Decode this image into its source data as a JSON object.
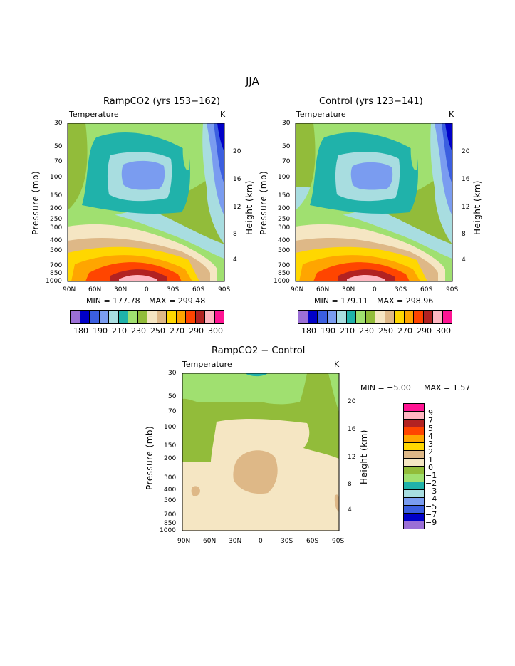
{
  "page_title": "JJA",
  "chart_data": [
    {
      "type": "contour",
      "title": "RampCO2 (yrs 153−162)",
      "subtitle_left": "Temperature",
      "subtitle_right": "K",
      "xlabel": "",
      "ylabel": "Pressure (mb)",
      "ylabel_right": "Height (km)",
      "x_ticks": [
        "90N",
        "60N",
        "30N",
        "0",
        "30S",
        "60S",
        "90S"
      ],
      "y_ticks": [
        "30",
        "50",
        "70",
        "100",
        "150",
        "200",
        "250",
        "300",
        "400",
        "500",
        "700",
        "850",
        "1000"
      ],
      "y_right_ticks": [
        "20",
        "16",
        "12",
        "8",
        "4"
      ],
      "min_label": "MIN = 177.78",
      "max_label": "MAX = 299.48",
      "color_levels": [
        "180",
        "190",
        "210",
        "230",
        "250",
        "270",
        "290",
        "300"
      ]
    },
    {
      "type": "contour",
      "title": "Control (yrs 123−141)",
      "subtitle_left": "Temperature",
      "subtitle_right": "K",
      "xlabel": "",
      "ylabel": "Pressure (mb)",
      "ylabel_right": "Height (km)",
      "x_ticks": [
        "90N",
        "60N",
        "30N",
        "0",
        "30S",
        "60S",
        "90S"
      ],
      "y_ticks": [
        "30",
        "50",
        "70",
        "100",
        "150",
        "200",
        "250",
        "300",
        "400",
        "500",
        "700",
        "850",
        "1000"
      ],
      "y_right_ticks": [
        "20",
        "16",
        "12",
        "8",
        "4"
      ],
      "min_label": "MIN = 179.11",
      "max_label": "MAX = 298.96",
      "color_levels": [
        "180",
        "190",
        "210",
        "230",
        "250",
        "270",
        "290",
        "300"
      ]
    },
    {
      "type": "contour",
      "title": "RampCO2 − Control",
      "subtitle_left": "Temperature",
      "subtitle_right": "K",
      "xlabel": "",
      "ylabel": "Pressure (mb)",
      "ylabel_right": "Height (km)",
      "x_ticks": [
        "90N",
        "60N",
        "30N",
        "0",
        "30S",
        "60S",
        "90S"
      ],
      "y_ticks": [
        "30",
        "50",
        "70",
        "100",
        "150",
        "200",
        "300",
        "400",
        "500",
        "700",
        "850",
        "1000"
      ],
      "y_right_ticks": [
        "20",
        "16",
        "12",
        "8",
        "4"
      ],
      "min_label": "MIN =  −5.00",
      "max_label": "MAX =   1.57",
      "color_levels": [
        "9",
        "7",
        "5",
        "4",
        "3",
        "2",
        "1",
        "0",
        "−1",
        "−2",
        "−3",
        "−4",
        "−5",
        "−7",
        "−9"
      ]
    }
  ],
  "colors": {
    "abs_bar": [
      "#9b6fd6",
      "#0000c8",
      "#3b5ee0",
      "#7a9cf0",
      "#a8dde0",
      "#20b2aa",
      "#a0e070",
      "#92bc3a",
      "#f5e6c3",
      "#deb887",
      "#ffd700",
      "#ffa500",
      "#ff4500",
      "#b22222",
      "#ffb6c1",
      "#ff1493"
    ],
    "diff_bar": [
      "#ff1493",
      "#ffb6c1",
      "#b22222",
      "#ff4500",
      "#ffa500",
      "#ffd700",
      "#deb887",
      "#f5e6c3",
      "#92bc3a",
      "#a0e070",
      "#20b2aa",
      "#a8dde0",
      "#7a9cf0",
      "#3b5ee0",
      "#0000c8",
      "#9b6fd6"
    ]
  }
}
